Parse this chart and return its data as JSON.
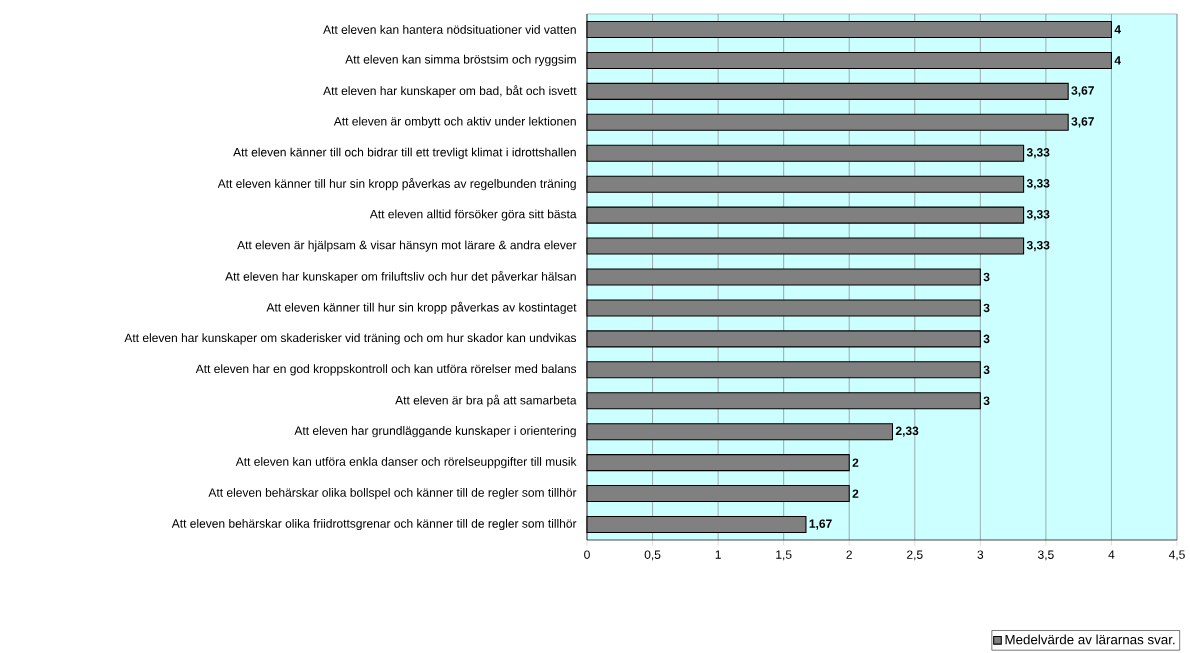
{
  "chart_data": {
    "type": "bar",
    "orientation": "horizontal",
    "categories": [
      "Att eleven kan hantera nödsituationer vid vatten",
      "Att eleven kan simma bröstsim och ryggsim",
      "Att eleven har kunskaper om bad, båt och isvett",
      "Att eleven är ombytt och aktiv under lektionen",
      "Att eleven känner till och bidrar till ett trevligt klimat i idrottshallen",
      "Att eleven känner till hur sin kropp påverkas av regelbunden träning",
      "Att eleven alltid försöker göra sitt bästa",
      "Att eleven är hjälpsam & visar hänsyn mot lärare & andra elever",
      "Att eleven har kunskaper om friluftsliv och hur det påverkar hälsan",
      "Att eleven känner till hur sin kropp påverkas av kostintaget",
      "Att eleven har kunskaper om skaderisker vid träning och om hur skador kan undvikas",
      "Att eleven har en god kroppskontroll och kan utföra rörelser med balans",
      "Att eleven är bra på att samarbeta",
      "Att eleven har grundläggande kunskaper i orientering",
      "Att eleven kan utföra enkla danser och rörelseuppgifter till musik",
      "Att eleven behärskar olika bollspel och känner till de regler som tillhör",
      "Att eleven behärskar olika friidrottsgrenar och känner till de regler som tillhör"
    ],
    "series": [
      {
        "name": "Medelvärde av lärarnas svar.",
        "color": "#808080",
        "values": [
          4,
          4,
          3.67,
          3.67,
          3.33,
          3.33,
          3.33,
          3.33,
          3,
          3,
          3,
          3,
          3,
          2.33,
          2,
          2,
          1.67
        ],
        "value_labels": [
          "4",
          "4",
          "3,67",
          "3,67",
          "3,33",
          "3,33",
          "3,33",
          "3,33",
          "3",
          "3",
          "3",
          "3",
          "3",
          "2,33",
          "2",
          "2",
          "1,67"
        ]
      }
    ],
    "xlim": [
      0,
      4.5
    ],
    "xticks": [
      0,
      {
        "value": 0.5,
        "label": "0,5"
      },
      1,
      {
        "value": 1.5,
        "label": "1,5"
      },
      2,
      {
        "value": 2.5,
        "label": "2,5"
      },
      3,
      {
        "value": 3.5,
        "label": "3,5"
      },
      4,
      {
        "value": 4.5,
        "label": "4,5"
      }
    ],
    "grid": "x",
    "legend": "bottom right"
  }
}
